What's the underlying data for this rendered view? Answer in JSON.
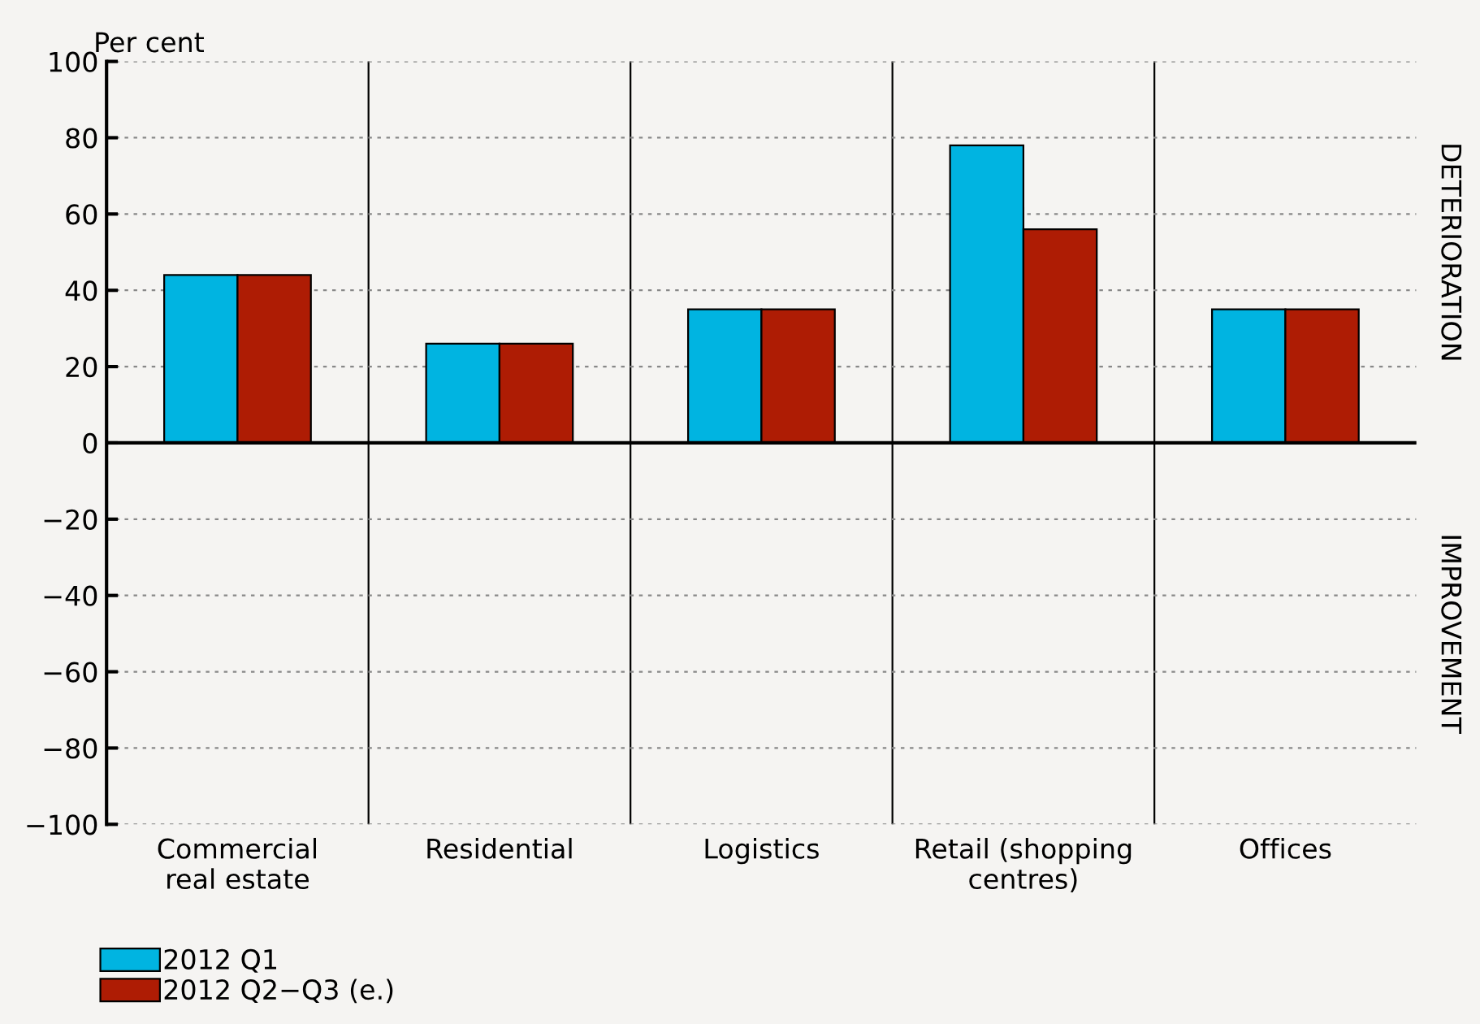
{
  "chart_data": {
    "type": "bar",
    "ylabel": "Per cent",
    "categories": [
      "Commercial\nreal estate",
      "Residential",
      "Logistics",
      "Retail (shopping\ncentres)",
      "Offices"
    ],
    "series": [
      {
        "name": "2012 Q1",
        "color": "#00b4e1",
        "values": [
          44,
          26,
          35,
          78,
          35
        ]
      },
      {
        "name": "2012 Q2−Q3 (e.)",
        "color": "#ae1c04",
        "values": [
          44,
          26,
          35,
          56,
          35
        ]
      }
    ],
    "ylim": [
      -100,
      100
    ],
    "yticks": [
      {
        "value": -100,
        "label": "−100"
      },
      {
        "value": -80,
        "label": "−80"
      },
      {
        "value": -60,
        "label": "−60"
      },
      {
        "value": -40,
        "label": "−40"
      },
      {
        "value": -20,
        "label": "−20"
      },
      0,
      20,
      40,
      60,
      80,
      100
    ],
    "grid": "y",
    "legend": "bottom left",
    "annotations": [
      "DETERIORATION",
      "IMPROVEMENT"
    ]
  }
}
